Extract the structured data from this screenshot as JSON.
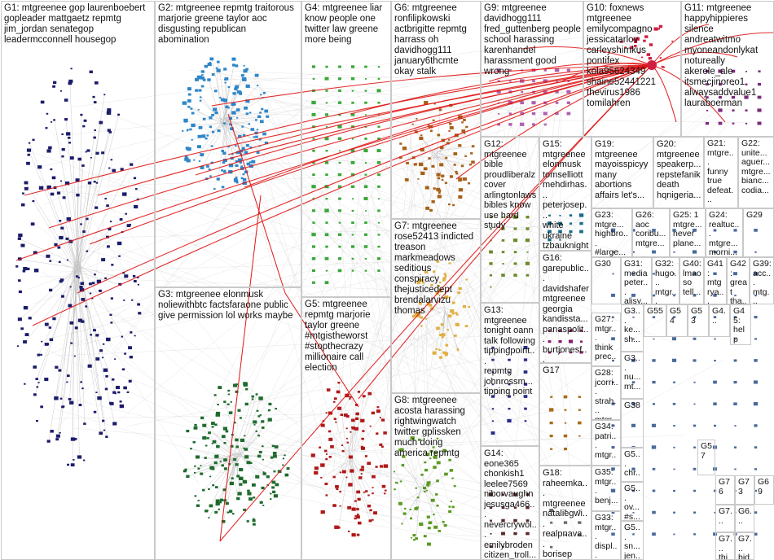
{
  "colors": {
    "edge_highlight": "#e01515",
    "edge_normal": "#c8c8c8",
    "border": "#c9c9c9",
    "G1": "#1c1c6b",
    "G2": "#2e86c8",
    "G3": "#1f6b2e",
    "G4": "#3aa83a",
    "G5": "#b01818",
    "G6": "#a86018",
    "G7": "#e0b040",
    "G8": "#5a9a20",
    "G9": "#b060b0",
    "G10": "#d02040",
    "G11": "#7a2a7a"
  },
  "groups": [
    {
      "id": "G1",
      "label": "G1: mtgreenee gop laurenboebert\ngopleader mattgaetz repmtg\njim_jordan senategop\nleadermcconnell housegop"
    },
    {
      "id": "G2",
      "label": "G2: mtgreenee repmtg traitorous\nmarjorie greene taylor aoc\ndisgusting republican\nabomination"
    },
    {
      "id": "G3",
      "label": "G3: mtgreenee elonmusk\nnoliewithbtc factsfaraone public\ngive permission lol works maybe"
    },
    {
      "id": "G4",
      "label": "G4: mtgreenee liar\nknow people one\ntwitter law greene\nmore being"
    },
    {
      "id": "G5",
      "label": "G5: mtgreenee\nrepmtg marjorie\ntaylor greene\n#mtgistheworst\n#stopthecrazy\nmillionaire call\nelection"
    },
    {
      "id": "G6",
      "label": "G6: mtgreenee\nronfilipkowski\nactbrigitte repmtg\nharrass oh\ndavidhogg111\njanuary6thcmte\nokay stalk"
    },
    {
      "id": "G7",
      "label": "G7: mtgreenee\nrose52413 indicted\ntreason\nmarkmeadows\nseditious\nconspiracy\nthejusticedept\nbrendalarvizu\nthomas"
    },
    {
      "id": "G8",
      "label": "G8: mtgreenee\nacosta harassing\nrightwingwatch\ntwitter gplissken\nmuch doing\namerica repmtg"
    },
    {
      "id": "G9",
      "label": "G9: mtgreenee\ndavidhogg111\nfred_guttenberg people\nschool harassing\nkarenhandel\nharassment good\nwrong"
    },
    {
      "id": "G10",
      "label": "G10: foxnews\nmtgreenee\nemilycompagno\njessicatarlov\ncarleyshimkus\npontifex\nkola95624349\nshaine52441221\nthevirus1986\ntomilahren"
    },
    {
      "id": "G11",
      "label": "G11: mtgreenee\nhappyhippieres\nsilence\nandreatwitmo\nmyoneandonlykat\nnotureally\nakerele_ale\nitsmecjinoreo1\nalwaysaddvalue1\nlauraboerman"
    },
    {
      "id": "G12",
      "label": "G12:\nmtgreenee\nbible\nproudliberalz\ncover\narlingtonlaws\nbibles know\nuse hard\nstudy"
    },
    {
      "id": "G13",
      "label": "G13:\nmtgreenee\ntonight oann\ntalk following\ntippingpoint...\nrepmtg\njohnrossm...\ntipping point"
    },
    {
      "id": "G14",
      "label": "G14:\neone365\nchonkish1\nleelee7569\nniborvaughn\njesusga466...\nnevercrywol...\nemilybroden\ncitizen_troll..."
    },
    {
      "id": "G15",
      "label": "G15:\nmtgreenee\nelonmusk\ntomselliott\nmehdirhas...\npeterjosep...\nwhite\nukraine\ntzbauknight\nwell yeah"
    },
    {
      "id": "G16",
      "label": "G16:\ngarepublic...\ndavidshafer\nmtgreenee\ngeorgia\nkandissta...\npanaspolit...\nburtjonesf...\njodyhice..."
    },
    {
      "id": "G17",
      "label": "G17"
    },
    {
      "id": "G18",
      "label": "G18:\nraheemka...\nmtgreenee\nnataliegwi...\nrealpnava...\nborisep\nmaureen...\ndarrenjbe..."
    },
    {
      "id": "G19",
      "label": "G19:\nmtgreenee\nmayoisspicyy\nmany\nabortions\naffairs let's..."
    },
    {
      "id": "G20",
      "label": "G20:\nmtgreenee\nspeakerp...\nrepstefanik\ndeath\nhqnigeria..."
    },
    {
      "id": "G21",
      "label": "G21:\nmtgre...\nfunny\ntrue\ndefeat..."
    },
    {
      "id": "G22",
      "label": "G22:\nunite...\naguer...\nmtgre...\nbianc...\ncodia..."
    },
    {
      "id": "G23",
      "label": "G23:\nmtgre...\nhighbro...\n#large..."
    },
    {
      "id": "G26",
      "label": "G26:\naoc\ncoribu...\nmtgre..."
    },
    {
      "id": "G25",
      "label": "G25: 1\nmtgre...\nnever\nplane..."
    },
    {
      "id": "G24",
      "label": "G24:\nrealtuc...\nmtgre...\nmorni..."
    },
    {
      "id": "G29",
      "label": "G29"
    },
    {
      "id": "G30",
      "label": "G30"
    },
    {
      "id": "G31",
      "label": "G31:\nmedia\npeter...\nalisy..."
    },
    {
      "id": "G32",
      "label": "G32:\nhugo...\nmtgr..."
    },
    {
      "id": "G40",
      "label": "G40:\nlmao\nso\ntell..."
    },
    {
      "id": "G41",
      "label": "G41:\nmtg\nrya...\nrzrb..."
    },
    {
      "id": "G42",
      "label": "G42:\ngreat\ntha...\nmtg..."
    },
    {
      "id": "G39",
      "label": "G39:\nacc...\nmtg...\ntitu..."
    },
    {
      "id": "G27",
      "label": "G27:\nmtgr...\nthink\nprec..."
    },
    {
      "id": "G28",
      "label": "G28:\njcorri...\nstrah...\nmtgr..."
    },
    {
      "id": "G34",
      "label": "G34:\npatri...\nmtgr..."
    },
    {
      "id": "G35",
      "label": "G35:\nmtgr...\nbenj..."
    },
    {
      "id": "G33",
      "label": "G33:\nmtgr...\ndispl...\nignor..."
    },
    {
      "id": "G36",
      "label": "G3...\nke...\nsh..."
    },
    {
      "id": "G37",
      "label": "G3...\nnu...\nmt..."
    },
    {
      "id": "G38",
      "label": "G38"
    },
    {
      "id": "G55",
      "label": "G55"
    },
    {
      "id": "G54",
      "label": "G54"
    },
    {
      "id": "G53",
      "label": "G53"
    },
    {
      "id": "G4x",
      "label": "G4..."
    },
    {
      "id": "G45",
      "label": "G45:\nhelp\ngo"
    },
    {
      "id": "G57",
      "label": "G57"
    },
    {
      "id": "G76",
      "label": "G76"
    },
    {
      "id": "G73",
      "label": "G73"
    },
    {
      "id": "G69",
      "label": "G69"
    },
    {
      "id": "G5a",
      "label": "G5...\nchr...\nmt..."
    },
    {
      "id": "G5b",
      "label": "G5...\nov...\n#s..."
    },
    {
      "id": "G5c",
      "label": "G5...\nsn...\njen..."
    },
    {
      "id": "G7a",
      "label": "G7..."
    },
    {
      "id": "G6a",
      "label": "G6..."
    },
    {
      "id": "G7b",
      "label": "G7...\nthi..."
    },
    {
      "id": "G7c",
      "label": "G7...\nbid..."
    }
  ]
}
